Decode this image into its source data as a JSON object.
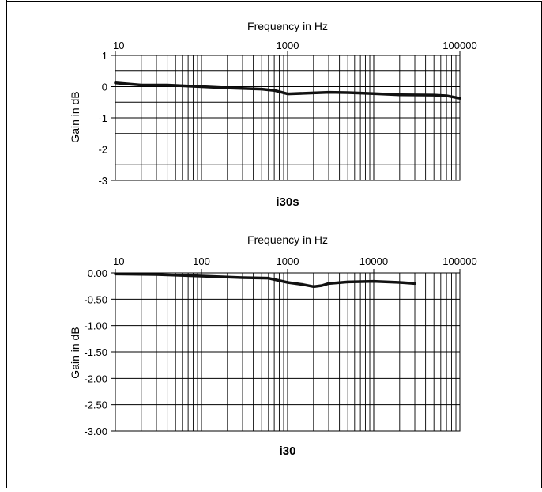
{
  "chart_data": [
    {
      "type": "line",
      "title": "i30s",
      "xlabel": "Frequency in Hz",
      "ylabel": "Gain in dB",
      "x_scale": "log",
      "xlim": [
        10,
        100000
      ],
      "ylim": [
        -3,
        1
      ],
      "x_tick_labels": [
        "10",
        "1000",
        "100000"
      ],
      "y_tick_labels": [
        "1",
        "0",
        "-1",
        "-2",
        "-3"
      ],
      "y_ticks": [
        1,
        0,
        -1,
        -2,
        -3
      ],
      "grid": true,
      "series": [
        {
          "x": [
            10,
            20,
            40,
            100,
            200,
            500,
            700,
            1000,
            2000,
            3000,
            5000,
            10000,
            20000,
            50000,
            70000,
            100000
          ],
          "y": [
            0.12,
            0.05,
            0.05,
            0.0,
            -0.04,
            -0.08,
            -0.12,
            -0.23,
            -0.2,
            -0.18,
            -0.19,
            -0.22,
            -0.26,
            -0.27,
            -0.29,
            -0.37
          ]
        }
      ]
    },
    {
      "type": "line",
      "title": "i30",
      "xlabel": "Frequency in Hz",
      "ylabel": "Gain in dB",
      "x_scale": "log",
      "xlim": [
        10,
        100000
      ],
      "ylim": [
        -3,
        0
      ],
      "x_tick_labels": [
        "10",
        "100",
        "1000",
        "10000",
        "100000"
      ],
      "y_tick_labels": [
        "0.00",
        "-0.50",
        "-1.00",
        "-1.50",
        "-2.00",
        "-2.50",
        "-3.00"
      ],
      "y_ticks": [
        0,
        -0.5,
        -1,
        -1.5,
        -2,
        -2.5,
        -3
      ],
      "grid": true,
      "series": [
        {
          "x": [
            10,
            30,
            100,
            300,
            600,
            1000,
            1500,
            2000,
            2500,
            3000,
            5000,
            10000,
            20000,
            30000
          ],
          "y": [
            -0.02,
            -0.03,
            -0.06,
            -0.09,
            -0.1,
            -0.18,
            -0.22,
            -0.26,
            -0.24,
            -0.2,
            -0.17,
            -0.16,
            -0.18,
            -0.2
          ]
        }
      ]
    }
  ]
}
